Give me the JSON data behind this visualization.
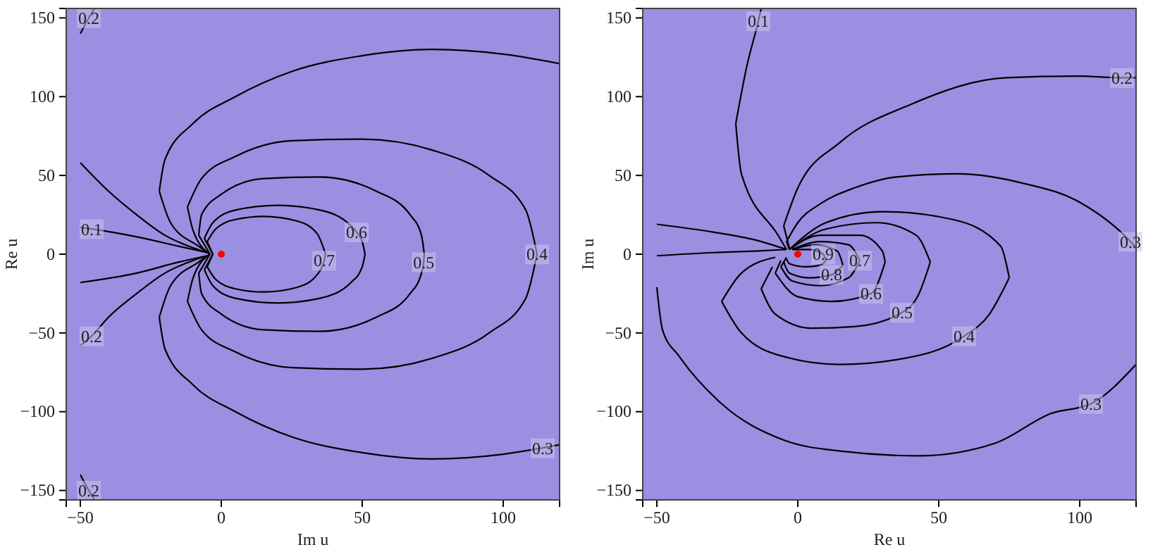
{
  "chart_data": [
    {
      "type": "line",
      "xlabel": "Im u",
      "ylabel": "Re u",
      "xlim": [
        -55,
        120
      ],
      "ylim": [
        -156,
        156
      ],
      "xticks": [
        {
          "value": -50,
          "label": "−50"
        },
        0,
        50,
        100
      ],
      "yticks": [
        {
          "value": -150,
          "label": "−150"
        },
        {
          "value": -100,
          "label": "−100"
        },
        {
          "value": -50,
          "label": "−50"
        },
        0,
        50,
        100,
        150
      ],
      "series": [
        {
          "color": "#000000",
          "x": [
            -50,
            -46,
            -30,
            -15,
            -5
          ],
          "values": [
            17,
            16,
            11,
            5,
            1
          ]
        },
        {
          "color": "#000000",
          "x": [
            -50,
            -30,
            -15,
            -5
          ],
          "values": [
            -18,
            -12,
            -5,
            -1
          ]
        },
        {
          "color": "#000000",
          "x": [
            -50,
            -40,
            -30,
            -20,
            -10,
            -5
          ],
          "values": [
            58,
            40,
            25,
            12,
            4,
            1
          ]
        },
        {
          "color": "#000000",
          "x": [
            -50,
            -46,
            -40,
            -30,
            -20,
            -10,
            -5
          ],
          "values": [
            -58,
            -52,
            -40,
            -25,
            -12,
            -4,
            -1
          ]
        },
        {
          "color": "#000000",
          "x": [
            -50,
            -47,
            -45
          ],
          "values": [
            140,
            150,
            156
          ]
        },
        {
          "color": "#000000",
          "x": [
            -50,
            -47,
            -45
          ],
          "values": [
            -140,
            -150,
            -156
          ]
        },
        {
          "color": "#000000",
          "x": [
            -22,
            -20,
            -10,
            5,
            25,
            50,
            75,
            100,
            120
          ],
          "values": [
            40,
            60,
            83,
            100,
            116,
            126,
            130,
            127,
            121
          ]
        },
        {
          "color": "#000000",
          "x": [
            -22,
            -18,
            -8,
            -4
          ],
          "values": [
            40,
            20,
            5,
            0
          ]
        },
        {
          "color": "#000000",
          "x": [
            -22,
            -20,
            -10,
            5,
            25,
            50,
            75,
            100,
            114,
            120
          ],
          "values": [
            -40,
            -60,
            -83,
            -100,
            -116,
            -126,
            -130,
            -127,
            -123,
            -121
          ]
        },
        {
          "color": "#000000",
          "x": [
            -22,
            -18,
            -8,
            -4
          ],
          "values": [
            -40,
            -20,
            -5,
            0
          ]
        },
        {
          "color": "#000000",
          "x": [
            -12,
            -7,
            5,
            25,
            50,
            75,
            95,
            108,
            112
          ],
          "values": [
            30,
            48,
            62,
            72,
            73,
            66,
            50,
            28,
            0
          ]
        },
        {
          "color": "#000000",
          "x": [
            -12,
            -10,
            -4
          ],
          "values": [
            30,
            15,
            0
          ]
        },
        {
          "color": "#000000",
          "x": [
            -12,
            -7,
            5,
            25,
            50,
            75,
            95,
            108,
            112
          ],
          "values": [
            -30,
            -48,
            -62,
            -72,
            -73,
            -66,
            -50,
            -28,
            0
          ]
        },
        {
          "color": "#000000",
          "x": [
            -12,
            -10,
            -4
          ],
          "values": [
            -30,
            -15,
            0
          ]
        },
        {
          "color": "#000000",
          "x": [
            -8,
            -7,
            0,
            15,
            35,
            55,
            67,
            71,
            72
          ],
          "values": [
            12,
            25,
            38,
            48,
            49,
            40,
            25,
            12,
            0
          ]
        },
        {
          "color": "#000000",
          "x": [
            -8,
            -4
          ],
          "values": [
            12,
            0
          ]
        },
        {
          "color": "#000000",
          "x": [
            -8,
            -7,
            0,
            15,
            35,
            55,
            67,
            71,
            71.8,
            72
          ],
          "values": [
            -12,
            -25,
            -38,
            -48,
            -49,
            -40,
            -25,
            -12,
            -5,
            0
          ]
        },
        {
          "color": "#000000",
          "x": [
            -8,
            -4
          ],
          "values": [
            -12,
            0
          ]
        },
        {
          "color": "#000000",
          "x": [
            -6,
            -3,
            5,
            20,
            35,
            46,
            48,
            50,
            51
          ],
          "values": [
            10,
            20,
            28,
            31,
            28,
            18,
            14,
            8,
            0
          ]
        },
        {
          "color": "#000000",
          "x": [
            -6,
            -3
          ],
          "values": [
            10,
            0
          ]
        },
        {
          "color": "#000000",
          "x": [
            -6,
            -3,
            5,
            20,
            35,
            46,
            50,
            51
          ],
          "values": [
            -10,
            -20,
            -28,
            -31,
            -28,
            -18,
            -8,
            0
          ]
        },
        {
          "color": "#000000",
          "x": [
            -6,
            -3
          ],
          "values": [
            -10,
            0
          ]
        },
        {
          "color": "#000000",
          "x": [
            -5,
            -2,
            5,
            15,
            27,
            34,
            37
          ],
          "values": [
            8,
            16,
            22,
            24,
            21,
            13,
            0
          ]
        },
        {
          "color": "#000000",
          "x": [
            -5,
            -3
          ],
          "values": [
            8,
            0
          ]
        },
        {
          "color": "#000000",
          "x": [
            -5,
            -2,
            5,
            15,
            27,
            34,
            36.5,
            37
          ],
          "values": [
            -8,
            -16,
            -22,
            -24,
            -21,
            -13,
            -4,
            0
          ]
        },
        {
          "color": "#000000",
          "x": [
            -5,
            -3
          ],
          "values": [
            -8,
            0
          ]
        },
        {
          "type": "scatter",
          "color": "#ff0000",
          "x": [
            0
          ],
          "values": [
            0
          ]
        }
      ],
      "annotations": [
        {
          "text": "0.1",
          "x": -46,
          "y": 16
        },
        {
          "text": "0.2",
          "x": -46,
          "y": -52
        },
        {
          "text": "0.2",
          "x": -47,
          "y": 150
        },
        {
          "text": "0.2",
          "x": -47,
          "y": -150
        },
        {
          "text": "0.3",
          "x": 114,
          "y": -123
        },
        {
          "text": "0.4",
          "x": 112,
          "y": 0
        },
        {
          "text": "0.5",
          "x": 71.8,
          "y": -5
        },
        {
          "text": "0.6",
          "x": 48,
          "y": 14
        },
        {
          "text": "0.7",
          "x": 36.5,
          "y": -4
        }
      ]
    },
    {
      "type": "line",
      "xlabel": "Re u",
      "ylabel": "Im u",
      "xlim": [
        -55,
        120
      ],
      "ylim": [
        -156,
        156
      ],
      "xticks": [
        {
          "value": -50,
          "label": "−50"
        },
        0,
        50,
        100
      ],
      "yticks": [
        {
          "value": -150,
          "label": "−150"
        },
        {
          "value": -100,
          "label": "−100"
        },
        {
          "value": -50,
          "label": "−50"
        },
        0,
        50,
        100,
        150
      ],
      "series": [
        {
          "color": "#000000",
          "x": [
            -22,
            -18,
            -14,
            -13
          ],
          "values": [
            83,
            120,
            148,
            156
          ]
        },
        {
          "color": "#000000",
          "x": [
            -22,
            -20,
            -7,
            -4
          ],
          "values": [
            83,
            51,
            12,
            3
          ]
        },
        {
          "color": "#000000",
          "x": [
            -50,
            -30,
            -15,
            -4
          ],
          "values": [
            19,
            14,
            9,
            3
          ]
        },
        {
          "color": "#000000",
          "x": [
            -5,
            0,
            15,
            40,
            74,
            100,
            115,
            120
          ],
          "values": [
            18,
            42,
            71,
            95,
            112,
            113,
            112,
            112
          ]
        },
        {
          "color": "#000000",
          "x": [
            -5,
            -3
          ],
          "values": [
            18,
            4
          ]
        },
        {
          "color": "#000000",
          "x": [
            -50,
            -30,
            -15,
            -4
          ],
          "values": [
            -1,
            1,
            2,
            3
          ]
        },
        {
          "color": "#000000",
          "x": [
            -4,
            0,
            8,
            20,
            35,
            57,
            80,
            100,
            118,
            120
          ],
          "values": [
            8,
            20,
            32,
            42,
            49,
            51,
            45,
            33,
            8,
            4
          ]
        },
        {
          "color": "#000000",
          "x": [
            -4,
            -3
          ],
          "values": [
            8,
            3
          ]
        },
        {
          "color": "#000000",
          "x": [
            -50,
            -48,
            -42,
            -27,
            -5,
            15,
            43,
            70,
            90,
            104,
            120
          ],
          "values": [
            -21,
            -48,
            -65,
            -95,
            -118,
            -125,
            -128,
            -120,
            -101,
            -95,
            -70
          ]
        },
        {
          "color": "#000000",
          "x": [
            -27,
            -20,
            -8
          ],
          "values": [
            -30,
            -12,
            -2
          ]
        },
        {
          "color": "#000000",
          "x": [
            -3,
            10,
            30,
            55,
            72,
            75
          ],
          "values": [
            3,
            20,
            27,
            22,
            5,
            -15
          ]
        },
        {
          "color": "#000000",
          "x": [
            -27,
            -20,
            -5,
            15,
            35,
            59,
            68,
            75
          ],
          "values": [
            -30,
            -50,
            -65,
            -70,
            -67,
            -52,
            -38,
            -15
          ]
        },
        {
          "color": "#000000",
          "x": [
            -13,
            -9
          ],
          "values": [
            -22,
            -8
          ]
        },
        {
          "color": "#000000",
          "x": [
            -3,
            10,
            28,
            42,
            47
          ],
          "values": [
            3,
            16,
            20,
            12,
            -5
          ]
        },
        {
          "color": "#000000",
          "x": [
            -13,
            -8,
            5,
            20,
            37,
            43,
            47
          ],
          "values": [
            -22,
            -38,
            -47,
            -46,
            -37,
            -25,
            -5
          ]
        },
        {
          "color": "#000000",
          "x": [
            -8,
            -6
          ],
          "values": [
            -12,
            -4
          ]
        },
        {
          "color": "#000000",
          "x": [
            -3,
            8,
            22,
            30,
            31
          ],
          "values": [
            3,
            12,
            12,
            2,
            -5
          ]
        },
        {
          "color": "#000000",
          "x": [
            -8,
            0,
            12,
            26,
            31
          ],
          "values": [
            -12,
            -27,
            -30,
            -25,
            -5
          ]
        },
        {
          "color": "#000000",
          "x": [
            -6,
            -4
          ],
          "values": [
            -8,
            -2
          ]
        },
        {
          "color": "#000000",
          "x": [
            -2,
            8,
            18,
            22
          ],
          "values": [
            3,
            8,
            6,
            -4
          ]
        },
        {
          "color": "#000000",
          "x": [
            -6,
            -2,
            8,
            18,
            22
          ],
          "values": [
            -8,
            -17,
            -20,
            -15,
            -4
          ]
        },
        {
          "color": "#000000",
          "x": [
            -2,
            6,
            14,
            16
          ],
          "values": [
            3,
            6,
            2,
            -7
          ]
        },
        {
          "color": "#000000",
          "x": [
            -5,
            -3,
            4,
            12,
            16
          ],
          "values": [
            -5,
            -12,
            -15,
            -13,
            -7
          ]
        },
        {
          "color": "#000000",
          "x": [
            -2,
            4,
            9,
            10
          ],
          "values": [
            3,
            3,
            0,
            -4
          ]
        },
        {
          "color": "#000000",
          "x": [
            -4,
            -3,
            3,
            8,
            10
          ],
          "values": [
            -3,
            -6,
            -8,
            -7,
            -4
          ]
        },
        {
          "type": "scatter",
          "color": "#ff0000",
          "x": [
            0
          ],
          "values": [
            0
          ]
        }
      ],
      "annotations": [
        {
          "text": "0.1",
          "x": -14,
          "y": 148
        },
        {
          "text": "0.2",
          "x": 115,
          "y": 112
        },
        {
          "text": "0.3",
          "x": 118,
          "y": 8
        },
        {
          "text": "0.3",
          "x": 104,
          "y": -95
        },
        {
          "text": "0.4",
          "x": 59,
          "y": -52
        },
        {
          "text": "0.5",
          "x": 37,
          "y": -37
        },
        {
          "text": "0.6",
          "x": 26,
          "y": -25
        },
        {
          "text": "0.7",
          "x": 22,
          "y": -4
        },
        {
          "text": "0.8",
          "x": 12,
          "y": -13
        },
        {
          "text": "0.9",
          "x": 9,
          "y": 0
        }
      ]
    }
  ]
}
